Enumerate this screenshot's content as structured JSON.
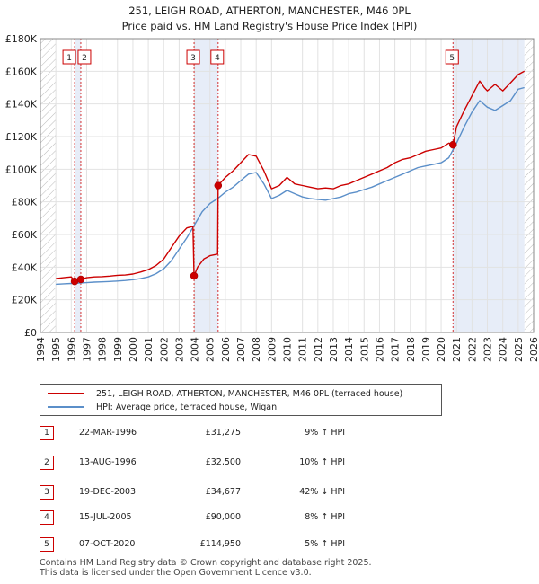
{
  "chart_data": {
    "type": "line",
    "title": "251, LEIGH ROAD, ATHERTON, MANCHESTER, M46 0PL",
    "subtitle": "Price paid vs. HM Land Registry's House Price Index (HPI)",
    "xlabel": "",
    "ylabel": "",
    "xlim": [
      1994,
      2026
    ],
    "ylim": [
      0,
      180000
    ],
    "x_ticks": [
      1994,
      1995,
      1996,
      1997,
      1998,
      1999,
      2000,
      2001,
      2002,
      2003,
      2004,
      2005,
      2006,
      2007,
      2008,
      2009,
      2010,
      2011,
      2012,
      2013,
      2014,
      2015,
      2016,
      2017,
      2018,
      2019,
      2020,
      2021,
      2022,
      2023,
      2024,
      2025,
      2026
    ],
    "y_ticks": [
      {
        "value": 0,
        "label": "£0"
      },
      {
        "value": 20000,
        "label": "£20K"
      },
      {
        "value": 40000,
        "label": "£40K"
      },
      {
        "value": 60000,
        "label": "£60K"
      },
      {
        "value": 80000,
        "label": "£80K"
      },
      {
        "value": 100000,
        "label": "£100K"
      },
      {
        "value": 120000,
        "label": "£120K"
      },
      {
        "value": 140000,
        "label": "£140K"
      },
      {
        "value": 160000,
        "label": "£160K"
      },
      {
        "value": 180000,
        "label": "£180K"
      }
    ],
    "grid": true,
    "series": [
      {
        "name": "251, LEIGH ROAD, ATHERTON, MANCHESTER, M46 0PL (terraced house)",
        "color": "#cc0000",
        "x": [
          1995.0,
          1995.5,
          1996.0,
          1996.22,
          1996.4,
          1996.62,
          1997.0,
          1997.5,
          1998.0,
          1998.5,
          1999.0,
          1999.5,
          2000.0,
          2000.5,
          2001.0,
          2001.5,
          2002.0,
          2002.5,
          2003.0,
          2003.5,
          2003.9,
          2003.97,
          2004.2,
          2004.6,
          2005.0,
          2005.5,
          2005.53,
          2006.0,
          2006.5,
          2007.0,
          2007.5,
          2008.0,
          2008.5,
          2009.0,
          2009.5,
          2010.0,
          2010.5,
          2011.0,
          2011.5,
          2012.0,
          2012.5,
          2013.0,
          2013.5,
          2014.0,
          2014.5,
          2015.0,
          2015.5,
          2016.0,
          2016.5,
          2017.0,
          2017.5,
          2018.0,
          2018.5,
          2019.0,
          2019.5,
          2020.0,
          2020.5,
          2020.77,
          2021.0,
          2021.5,
          2022.0,
          2022.5,
          2022.8,
          2023.0,
          2023.5,
          2024.0,
          2024.5,
          2025.0,
          2025.4
        ],
        "values": [
          33000,
          33500,
          34000,
          31275,
          32000,
          32500,
          33500,
          34000,
          34200,
          34500,
          35000,
          35200,
          35800,
          37000,
          38500,
          41000,
          45000,
          52000,
          59000,
          64000,
          65000,
          34677,
          40000,
          45000,
          47000,
          48000,
          90000,
          95000,
          99000,
          104000,
          109000,
          108000,
          99000,
          88000,
          90000,
          95000,
          91000,
          90000,
          89000,
          88000,
          88500,
          88000,
          90000,
          91000,
          93000,
          95000,
          97000,
          99000,
          101000,
          104000,
          106000,
          107000,
          109000,
          111000,
          112000,
          113000,
          116000,
          114950,
          126000,
          136000,
          145000,
          154000,
          150000,
          148000,
          152000,
          148000,
          153000,
          158000,
          160000
        ]
      },
      {
        "name": "HPI: Average price, terraced house, Wigan",
        "color": "#5b8fc9",
        "x": [
          1995.0,
          1995.5,
          1996.0,
          1996.5,
          1997.0,
          1997.5,
          1998.0,
          1998.5,
          1999.0,
          1999.5,
          2000.0,
          2000.5,
          2001.0,
          2001.5,
          2002.0,
          2002.5,
          2003.0,
          2003.5,
          2004.0,
          2004.5,
          2005.0,
          2005.5,
          2006.0,
          2006.5,
          2007.0,
          2007.5,
          2008.0,
          2008.5,
          2009.0,
          2009.5,
          2010.0,
          2010.5,
          2011.0,
          2011.5,
          2012.0,
          2012.5,
          2013.0,
          2013.5,
          2014.0,
          2014.5,
          2015.0,
          2015.5,
          2016.0,
          2016.5,
          2017.0,
          2017.5,
          2018.0,
          2018.5,
          2019.0,
          2019.5,
          2020.0,
          2020.5,
          2021.0,
          2021.5,
          2022.0,
          2022.5,
          2023.0,
          2023.5,
          2024.0,
          2024.5,
          2025.0,
          2025.4
        ],
        "values": [
          29500,
          29800,
          30000,
          30200,
          30500,
          30800,
          31000,
          31200,
          31500,
          31800,
          32300,
          33000,
          34000,
          36000,
          39000,
          44000,
          51000,
          58000,
          66000,
          74000,
          79000,
          82000,
          86000,
          89000,
          93000,
          97000,
          98000,
          91000,
          82000,
          84000,
          87000,
          85000,
          83000,
          82000,
          81500,
          81000,
          82000,
          83000,
          85000,
          86000,
          87500,
          89000,
          91000,
          93000,
          95000,
          97000,
          99000,
          101000,
          102000,
          103000,
          104000,
          107000,
          116000,
          126000,
          135000,
          142000,
          138000,
          136000,
          139000,
          142000,
          149000,
          150000
        ]
      }
    ],
    "sales": [
      {
        "id": "1",
        "x": 1996.22,
        "price": 31275,
        "date": "22-MAR-1996",
        "price_label": "£31,275",
        "hpi": "9% ↑ HPI"
      },
      {
        "id": "2",
        "x": 1996.62,
        "price": 32500,
        "date": "13-AUG-1996",
        "price_label": "£32,500",
        "hpi": "10% ↑ HPI"
      },
      {
        "id": "3",
        "x": 2003.97,
        "price": 34677,
        "date": "19-DEC-2003",
        "price_label": "£34,677",
        "hpi": "42% ↓ HPI"
      },
      {
        "id": "4",
        "x": 2005.53,
        "price": 90000,
        "date": "15-JUL-2005",
        "price_label": "£90,000",
        "hpi": "8% ↑ HPI"
      },
      {
        "id": "5",
        "x": 2020.77,
        "price": 114950,
        "date": "07-OCT-2020",
        "price_label": "£114,950",
        "hpi": "5% ↑ HPI"
      }
    ],
    "shaded_ranges": [
      [
        1996.22,
        1996.62
      ],
      [
        2003.97,
        2005.53
      ],
      [
        2020.77,
        2025.4
      ]
    ],
    "hatched_ranges": [
      [
        1994,
        1995
      ],
      [
        2025.4,
        2026
      ]
    ]
  },
  "legend": {
    "property_label": "251, LEIGH ROAD, ATHERTON, MANCHESTER, M46 0PL (terraced house)",
    "hpi_label": "HPI: Average price, terraced house, Wigan",
    "property_color": "#cc0000",
    "hpi_color": "#5b8fc9"
  },
  "footer": {
    "line1": "Contains HM Land Registry data © Crown copyright and database right 2025.",
    "line2": "This data is licensed under the Open Government Licence v3.0."
  }
}
